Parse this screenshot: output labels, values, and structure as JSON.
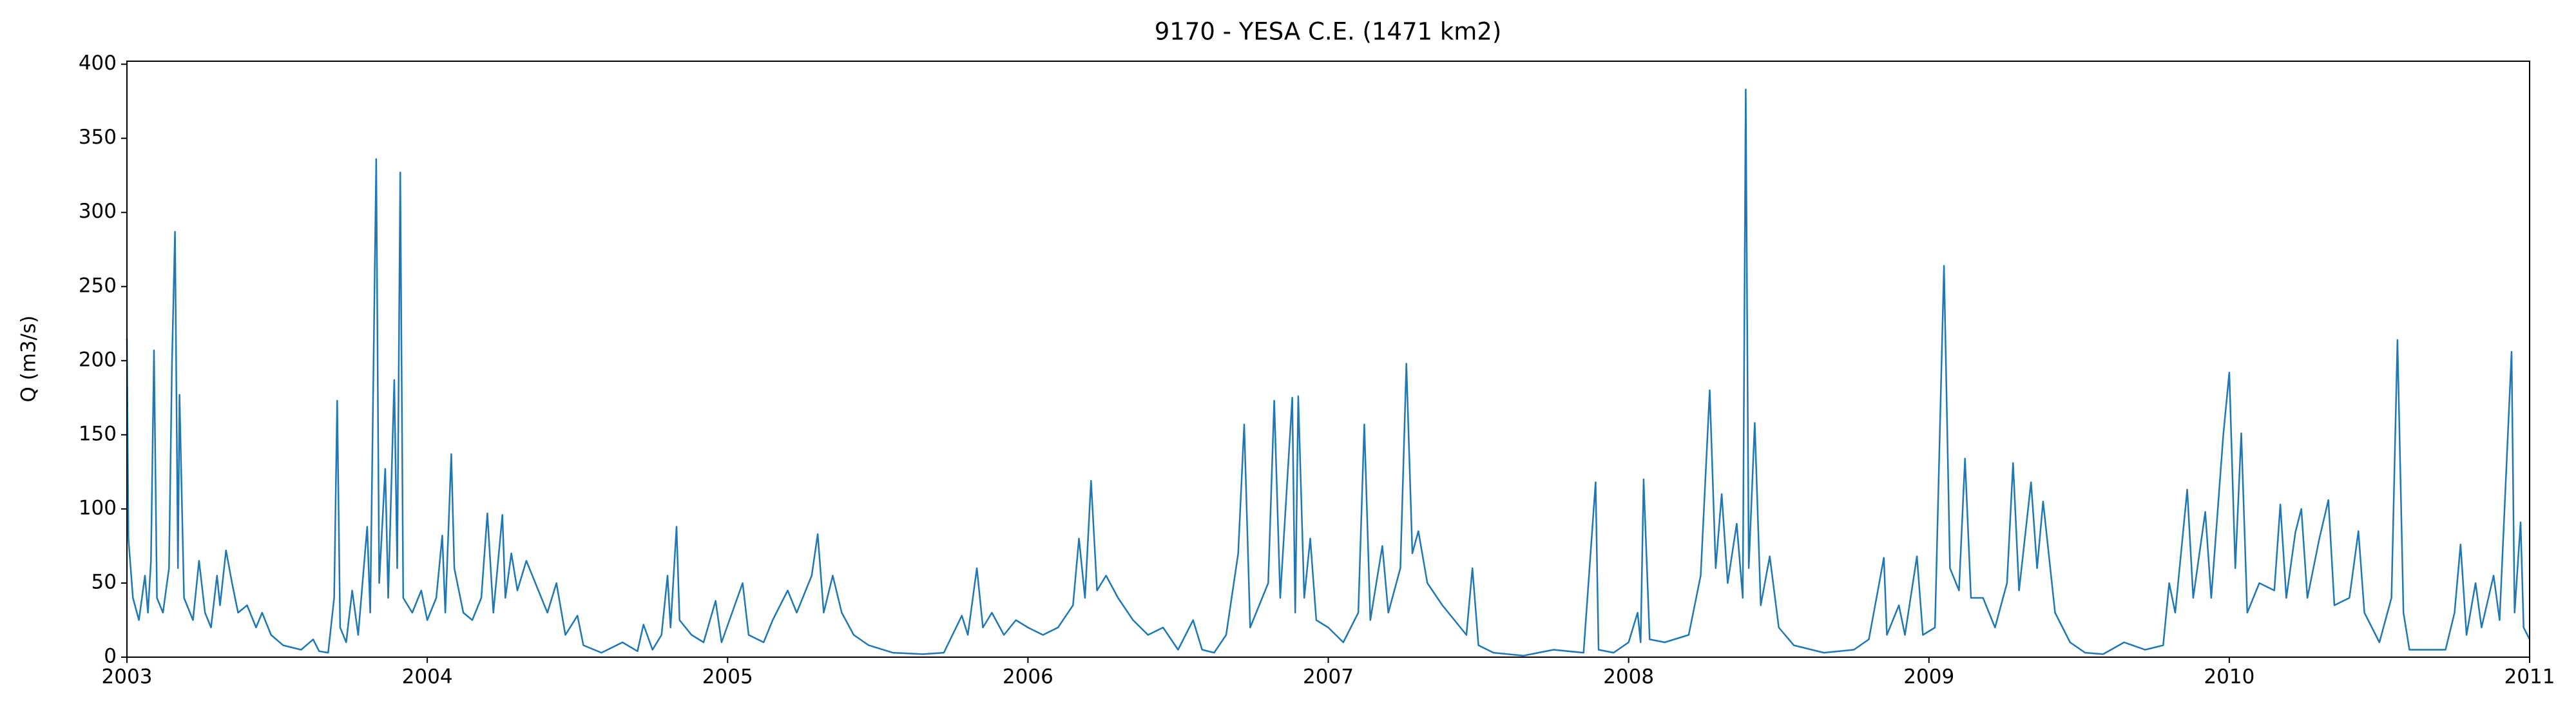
{
  "chart_data": {
    "type": "line",
    "title": "9170 - YESA C.E. (1471 km2)",
    "ylabel": "Q (m3/s)",
    "color": "#1f77b4",
    "xlim": [
      2003,
      2011
    ],
    "xticks": [
      2003,
      2004,
      2005,
      2006,
      2007,
      2008,
      2009,
      2010,
      2011
    ],
    "ylim": [
      0,
      402
    ],
    "yticks": [
      0,
      50,
      100,
      150,
      200,
      250,
      300,
      350,
      400
    ],
    "x": [
      2003.0,
      2003.005,
      2003.02,
      2003.04,
      2003.06,
      2003.07,
      2003.08,
      2003.09,
      2003.1,
      2003.12,
      2003.14,
      2003.15,
      2003.16,
      2003.17,
      2003.175,
      2003.19,
      2003.22,
      2003.24,
      2003.26,
      2003.28,
      2003.3,
      2003.31,
      2003.33,
      2003.35,
      2003.37,
      2003.4,
      2003.43,
      2003.45,
      2003.48,
      2003.52,
      2003.58,
      2003.62,
      2003.64,
      2003.67,
      2003.69,
      2003.7,
      2003.71,
      2003.73,
      2003.75,
      2003.77,
      2003.8,
      2003.81,
      2003.82,
      2003.83,
      2003.84,
      2003.86,
      2003.87,
      2003.89,
      2003.9,
      2003.91,
      2003.92,
      2003.95,
      2003.98,
      2004.0,
      2004.03,
      2004.05,
      2004.06,
      2004.08,
      2004.09,
      2004.12,
      2004.15,
      2004.18,
      2004.2,
      2004.22,
      2004.25,
      2004.26,
      2004.28,
      2004.3,
      2004.33,
      2004.36,
      2004.4,
      2004.43,
      2004.46,
      2004.5,
      2004.52,
      2004.58,
      2004.65,
      2004.7,
      2004.72,
      2004.75,
      2004.78,
      2004.8,
      2004.81,
      2004.83,
      2004.84,
      2004.88,
      2004.92,
      2004.96,
      2004.98,
      2005.05,
      2005.07,
      2005.12,
      2005.15,
      2005.2,
      2005.23,
      2005.28,
      2005.3,
      2005.32,
      2005.35,
      2005.38,
      2005.42,
      2005.47,
      2005.55,
      2005.65,
      2005.72,
      2005.78,
      2005.8,
      2005.83,
      2005.85,
      2005.88,
      2005.92,
      2005.96,
      2006.0,
      2006.05,
      2006.1,
      2006.15,
      2006.17,
      2006.19,
      2006.21,
      2006.23,
      2006.26,
      2006.3,
      2006.35,
      2006.4,
      2006.45,
      2006.5,
      2006.55,
      2006.58,
      2006.62,
      2006.66,
      2006.7,
      2006.72,
      2006.74,
      2006.8,
      2006.82,
      2006.84,
      2006.88,
      2006.89,
      2006.9,
      2006.92,
      2006.94,
      2006.96,
      2007.0,
      2007.05,
      2007.1,
      2007.12,
      2007.14,
      2007.18,
      2007.2,
      2007.24,
      2007.26,
      2007.28,
      2007.3,
      2007.33,
      2007.38,
      2007.42,
      2007.46,
      2007.48,
      2007.5,
      2007.55,
      2007.65,
      2007.75,
      2007.85,
      2007.89,
      2007.9,
      2007.95,
      2008.0,
      2008.03,
      2008.04,
      2008.05,
      2008.07,
      2008.12,
      2008.2,
      2008.24,
      2008.27,
      2008.29,
      2008.31,
      2008.33,
      2008.36,
      2008.38,
      2008.39,
      2008.4,
      2008.42,
      2008.44,
      2008.47,
      2008.5,
      2008.55,
      2008.65,
      2008.75,
      2008.8,
      2008.85,
      2008.86,
      2008.9,
      2008.92,
      2008.96,
      2008.98,
      2009.02,
      2009.05,
      2009.07,
      2009.1,
      2009.12,
      2009.14,
      2009.18,
      2009.22,
      2009.26,
      2009.28,
      2009.3,
      2009.34,
      2009.36,
      2009.38,
      2009.42,
      2009.47,
      2009.52,
      2009.58,
      2009.65,
      2009.72,
      2009.78,
      2009.8,
      2009.82,
      2009.86,
      2009.88,
      2009.92,
      2009.94,
      2009.98,
      2010.0,
      2010.02,
      2010.04,
      2010.06,
      2010.1,
      2010.15,
      2010.17,
      2010.19,
      2010.22,
      2010.24,
      2010.26,
      2010.3,
      2010.33,
      2010.35,
      2010.4,
      2010.43,
      2010.45,
      2010.5,
      2010.54,
      2010.56,
      2010.58,
      2010.6,
      2010.65,
      2010.72,
      2010.75,
      2010.77,
      2010.79,
      2010.82,
      2010.84,
      2010.88,
      2010.9,
      2010.94,
      2010.95,
      2010.97,
      2010.98,
      2011.0
    ],
    "values": [
      215,
      80,
      40,
      25,
      55,
      30,
      65,
      207,
      40,
      30,
      60,
      198,
      287,
      60,
      177,
      40,
      25,
      65,
      30,
      20,
      55,
      35,
      72,
      50,
      30,
      35,
      20,
      30,
      15,
      8,
      5,
      12,
      4,
      3,
      40,
      173,
      20,
      10,
      45,
      15,
      88,
      30,
      180,
      336,
      50,
      127,
      40,
      187,
      60,
      327,
      40,
      30,
      45,
      25,
      40,
      82,
      30,
      137,
      60,
      30,
      25,
      40,
      97,
      30,
      96,
      40,
      70,
      45,
      65,
      50,
      30,
      50,
      15,
      28,
      8,
      3,
      10,
      4,
      22,
      5,
      15,
      55,
      20,
      88,
      25,
      15,
      10,
      38,
      10,
      50,
      15,
      10,
      25,
      45,
      30,
      55,
      83,
      30,
      55,
      30,
      15,
      8,
      3,
      2,
      3,
      28,
      15,
      60,
      20,
      30,
      15,
      25,
      20,
      15,
      20,
      35,
      80,
      40,
      119,
      45,
      55,
      40,
      25,
      15,
      20,
      5,
      25,
      5,
      3,
      15,
      70,
      157,
      20,
      50,
      173,
      40,
      175,
      30,
      176,
      40,
      80,
      25,
      20,
      10,
      30,
      157,
      25,
      75,
      30,
      60,
      198,
      70,
      85,
      50,
      35,
      25,
      15,
      60,
      8,
      3,
      1,
      5,
      3,
      118,
      5,
      3,
      10,
      30,
      10,
      120,
      12,
      10,
      15,
      55,
      180,
      60,
      110,
      50,
      90,
      40,
      383,
      60,
      158,
      35,
      68,
      20,
      8,
      3,
      5,
      12,
      67,
      15,
      35,
      15,
      68,
      15,
      20,
      264,
      60,
      45,
      134,
      40,
      40,
      20,
      50,
      131,
      45,
      118,
      60,
      105,
      30,
      10,
      3,
      2,
      10,
      5,
      8,
      50,
      30,
      113,
      40,
      98,
      40,
      150,
      192,
      60,
      151,
      30,
      50,
      45,
      103,
      40,
      84,
      100,
      40,
      80,
      106,
      35,
      40,
      85,
      30,
      10,
      40,
      214,
      30,
      5,
      5,
      5,
      30,
      76,
      15,
      50,
      20,
      55,
      25,
      206,
      30,
      91,
      20,
      12
    ]
  }
}
